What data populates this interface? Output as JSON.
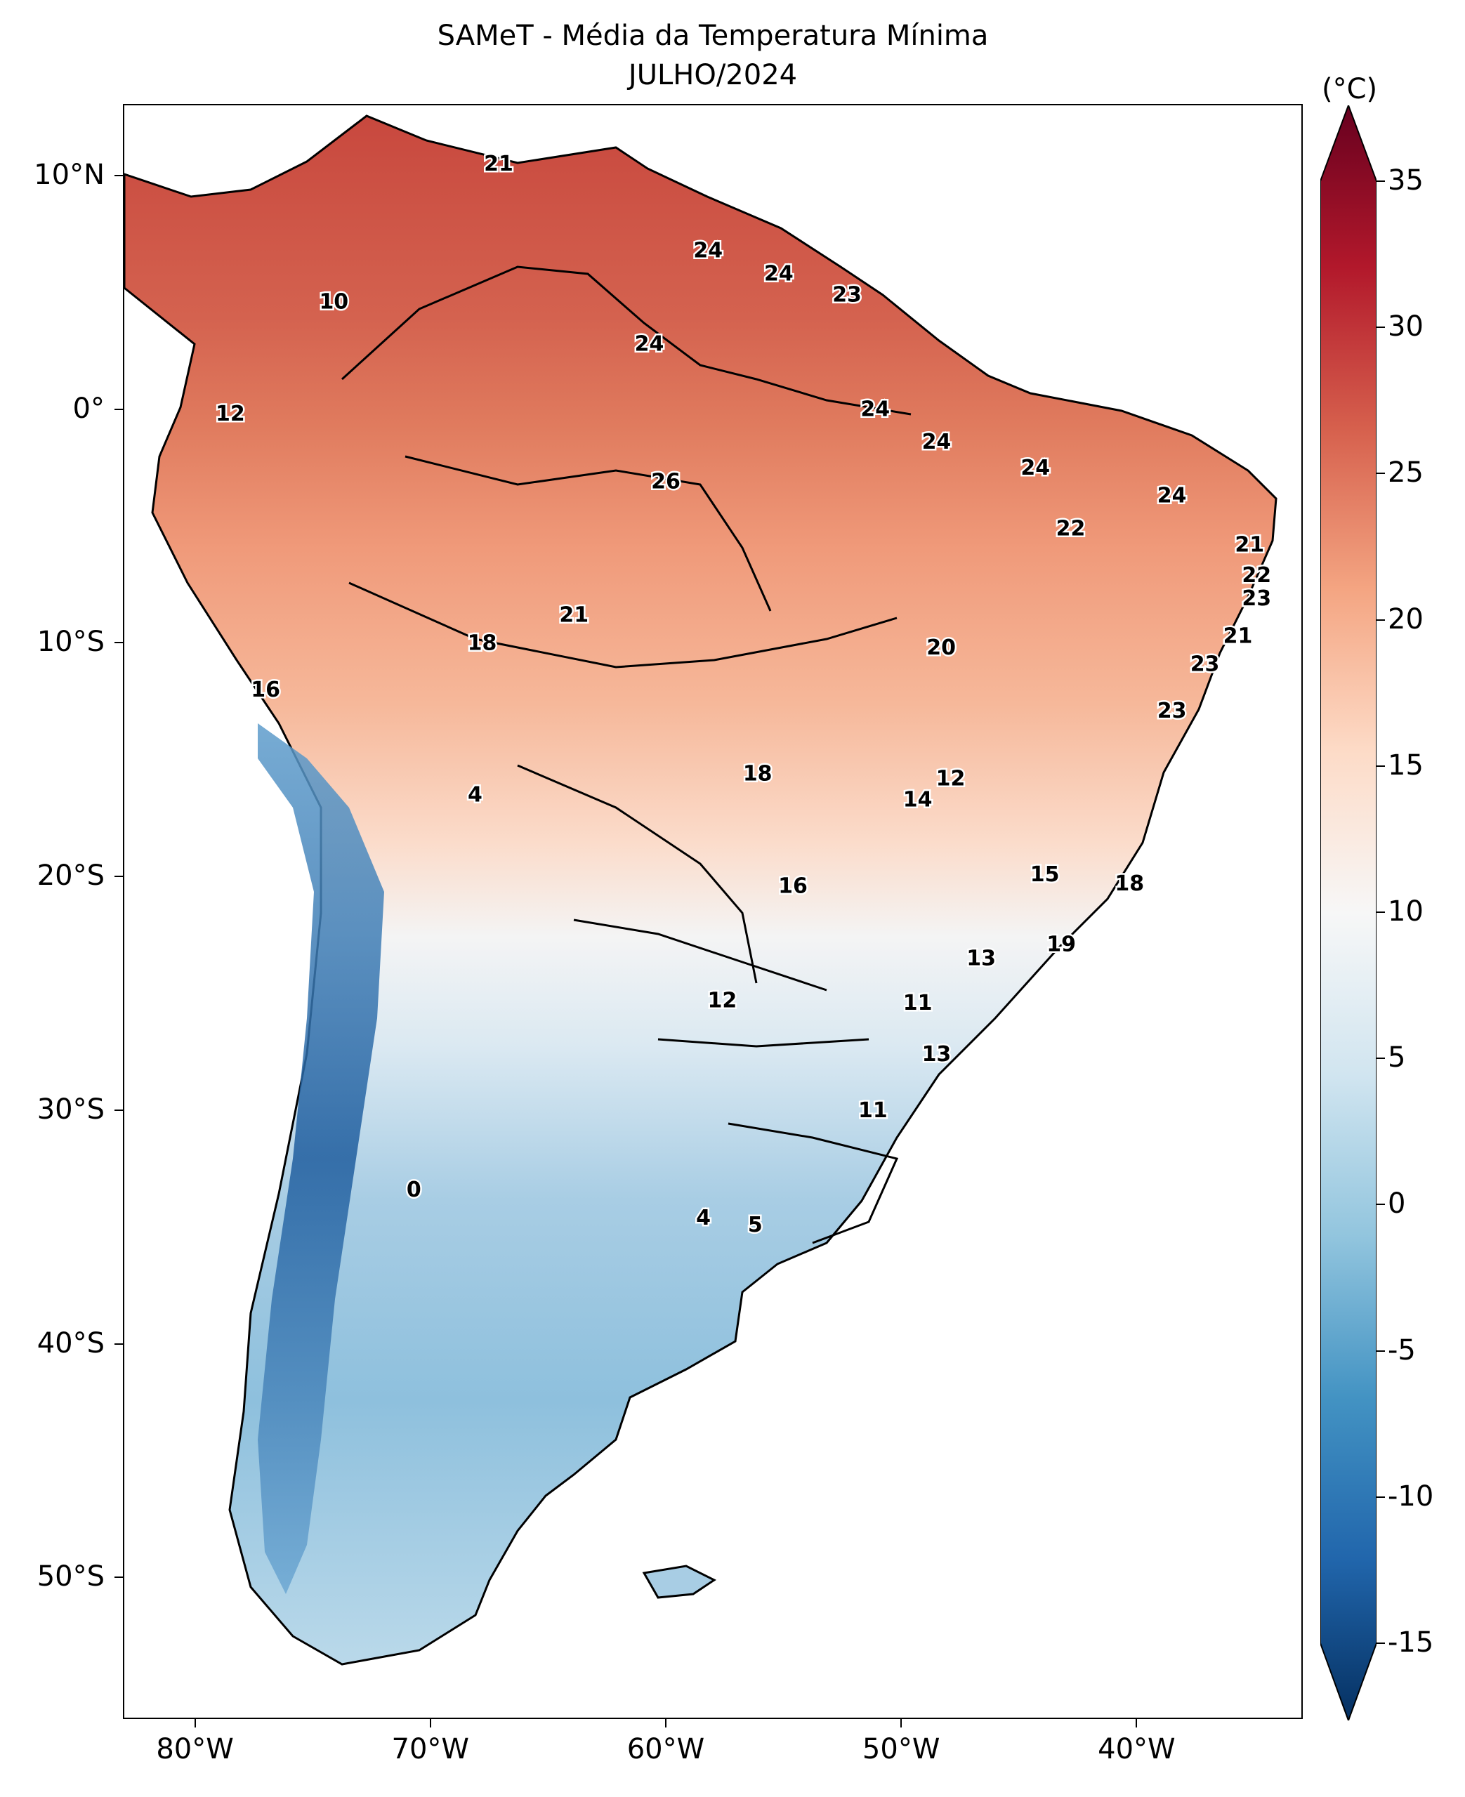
{
  "title": {
    "line1": "SAMeT - Média da Temperatura Mínima",
    "line2": "JULHO/2024"
  },
  "axes": {
    "y_ticks": [
      {
        "label": "10°N",
        "lat": 10
      },
      {
        "label": "0°",
        "lat": 0
      },
      {
        "label": "10°S",
        "lat": -10
      },
      {
        "label": "20°S",
        "lat": -20
      },
      {
        "label": "30°S",
        "lat": -30
      },
      {
        "label": "40°S",
        "lat": -40
      },
      {
        "label": "50°S",
        "lat": -50
      }
    ],
    "x_ticks": [
      {
        "label": "80°W",
        "lon": -80
      },
      {
        "label": "70°W",
        "lon": -70
      },
      {
        "label": "60°W",
        "lon": -60
      },
      {
        "label": "50°W",
        "lon": -50
      },
      {
        "label": "40°W",
        "lon": -40
      }
    ],
    "lon_range": [
      -83,
      -33
    ],
    "lat_range": [
      -56,
      13
    ]
  },
  "colorbar": {
    "unit": "(°C)",
    "range": [
      -15,
      35
    ],
    "ticks": [
      "35",
      "30",
      "25",
      "20",
      "15",
      "10",
      "5",
      "0",
      "-5",
      "-10",
      "-15"
    ],
    "colors": [
      "#67001f",
      "#b2182b",
      "#d6604d",
      "#f4a582",
      "#fddbc7",
      "#f7f7f7",
      "#d1e5f0",
      "#92c5de",
      "#4393c3",
      "#2166ac",
      "#053061"
    ]
  },
  "city_values": [
    {
      "v": "21",
      "lon": -67.1,
      "lat": 10.5
    },
    {
      "v": "10",
      "lon": -74.1,
      "lat": 4.6
    },
    {
      "v": "24",
      "lon": -58.2,
      "lat": 6.8
    },
    {
      "v": "24",
      "lon": -55.2,
      "lat": 5.8
    },
    {
      "v": "23",
      "lon": -52.3,
      "lat": 4.9
    },
    {
      "v": "24",
      "lon": -60.7,
      "lat": 2.8
    },
    {
      "v": "12",
      "lon": -78.5,
      "lat": -0.2
    },
    {
      "v": "24",
      "lon": -51.1,
      "lat": 0.0
    },
    {
      "v": "24",
      "lon": -48.5,
      "lat": -1.4
    },
    {
      "v": "24",
      "lon": -44.3,
      "lat": -2.5
    },
    {
      "v": "26",
      "lon": -60.0,
      "lat": -3.1
    },
    {
      "v": "24",
      "lon": -38.5,
      "lat": -3.7
    },
    {
      "v": "22",
      "lon": -42.8,
      "lat": -5.1
    },
    {
      "v": "21",
      "lon": -35.2,
      "lat": -5.8
    },
    {
      "v": "22",
      "lon": -34.9,
      "lat": -7.1
    },
    {
      "v": "23",
      "lon": -34.9,
      "lat": -8.1
    },
    {
      "v": "21",
      "lon": -35.7,
      "lat": -9.7
    },
    {
      "v": "21",
      "lon": -63.9,
      "lat": -8.8
    },
    {
      "v": "18",
      "lon": -67.8,
      "lat": -10.0
    },
    {
      "v": "20",
      "lon": -48.3,
      "lat": -10.2
    },
    {
      "v": "23",
      "lon": -37.1,
      "lat": -10.9
    },
    {
      "v": "16",
      "lon": -77.0,
      "lat": -12.0
    },
    {
      "v": "23",
      "lon": -38.5,
      "lat": -12.9
    },
    {
      "v": "18",
      "lon": -56.1,
      "lat": -15.6
    },
    {
      "v": "12",
      "lon": -47.9,
      "lat": -15.8
    },
    {
      "v": "14",
      "lon": -49.3,
      "lat": -16.7
    },
    {
      "v": "4",
      "lon": -68.1,
      "lat": -16.5
    },
    {
      "v": "15",
      "lon": -43.9,
      "lat": -19.9
    },
    {
      "v": "18",
      "lon": -40.3,
      "lat": -20.3
    },
    {
      "v": "16",
      "lon": -54.6,
      "lat": -20.4
    },
    {
      "v": "13",
      "lon": -46.6,
      "lat": -23.5
    },
    {
      "v": "19",
      "lon": -43.2,
      "lat": -22.9
    },
    {
      "v": "12",
      "lon": -57.6,
      "lat": -25.3
    },
    {
      "v": "11",
      "lon": -49.3,
      "lat": -25.4
    },
    {
      "v": "13",
      "lon": -48.5,
      "lat": -27.6
    },
    {
      "v": "11",
      "lon": -51.2,
      "lat": -30.0
    },
    {
      "v": "0",
      "lon": -70.7,
      "lat": -33.4
    },
    {
      "v": "4",
      "lon": -58.4,
      "lat": -34.6
    },
    {
      "v": "5",
      "lon": -56.2,
      "lat": -34.9
    }
  ]
}
